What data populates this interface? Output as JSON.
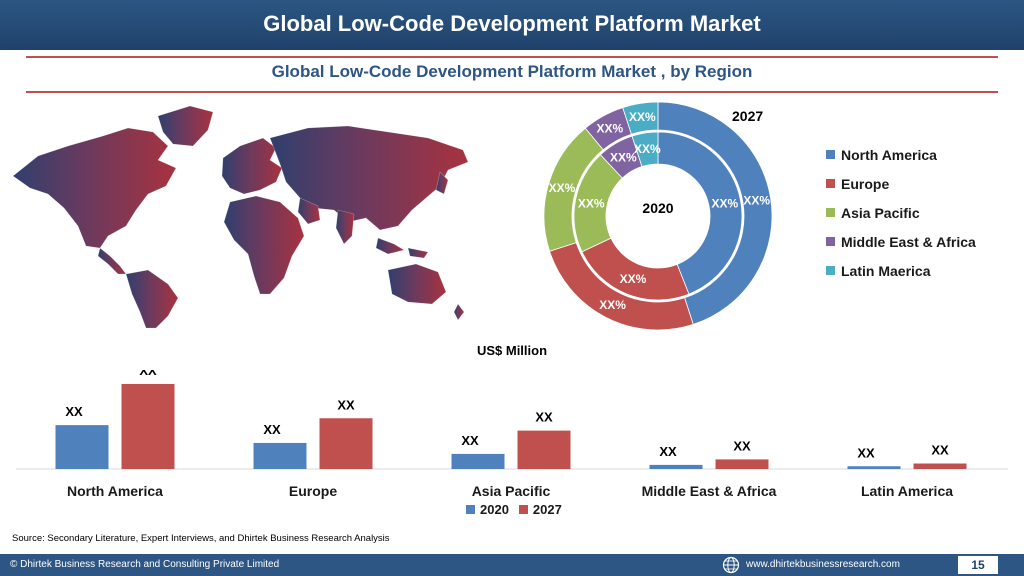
{
  "header": {
    "title": "Global Low-Code Development Platform Market"
  },
  "chart_data": [
    {
      "type": "pie",
      "variant": "donut",
      "title": "Global Low-Code Development Platform Market , by Region",
      "rings": [
        {
          "name": "2020",
          "position": "inner"
        },
        {
          "name": "2027",
          "position": "outer"
        }
      ],
      "inner_label": "2020",
      "outer_label": "2027",
      "categories": [
        "North America",
        "Europe",
        "Asia Pacific",
        "Middle East & Africa",
        "Latin Maerica"
      ],
      "colors": [
        "#4f81bd",
        "#c0504d",
        "#9bbb59",
        "#8064a2",
        "#4bacc6"
      ],
      "series": [
        {
          "name": "2020",
          "values": [
            0.44,
            0.24,
            0.2,
            0.07,
            0.05
          ],
          "labels": [
            "XX%",
            "XX%",
            "XX%",
            "XX%",
            "XX%"
          ]
        },
        {
          "name": "2027",
          "values": [
            0.45,
            0.25,
            0.19,
            0.06,
            0.05
          ],
          "labels": [
            "XX%",
            "XX%",
            "XX%",
            "XX%",
            "XX%"
          ]
        }
      ],
      "legend": {
        "position": "right",
        "items": [
          {
            "label": "North America",
            "color": "#4f81bd"
          },
          {
            "label": "Europe",
            "color": "#c0504d"
          },
          {
            "label": "Asia Pacific",
            "color": "#9bbb59"
          },
          {
            "label": "Middle East & Africa",
            "color": "#8064a2"
          },
          {
            "label": "Latin Maerica",
            "color": "#4bacc6"
          }
        ]
      }
    },
    {
      "type": "bar",
      "ylabel": "US$ Million",
      "categories": [
        "North America",
        "Europe",
        "Asia Pacific",
        "Middle East & Africa",
        "Latin America"
      ],
      "series": [
        {
          "name": "2020",
          "color": "#4f81bd",
          "values": [
            32,
            19,
            11,
            3,
            2
          ],
          "labels": [
            "XX",
            "XX",
            "XX",
            "XX",
            "XX"
          ]
        },
        {
          "name": "2027",
          "color": "#c0504d",
          "values": [
            62,
            37,
            28,
            7,
            4
          ],
          "labels": [
            "XX",
            "XX",
            "XX",
            "XX",
            "XX"
          ]
        }
      ],
      "ylim": [
        0,
        70
      ],
      "grid": false,
      "legend": {
        "position": "bottom"
      }
    }
  ],
  "source": "Source: Secondary Literature, Expert Interviews, and Dhirtek Business Research Analysis",
  "footer": {
    "company": "© Dhirtek Business Research and Consulting Private Limited",
    "website": "www.dhirtekbusinessresearch.com",
    "page": "15",
    "globe_icon": "globe-icon"
  }
}
